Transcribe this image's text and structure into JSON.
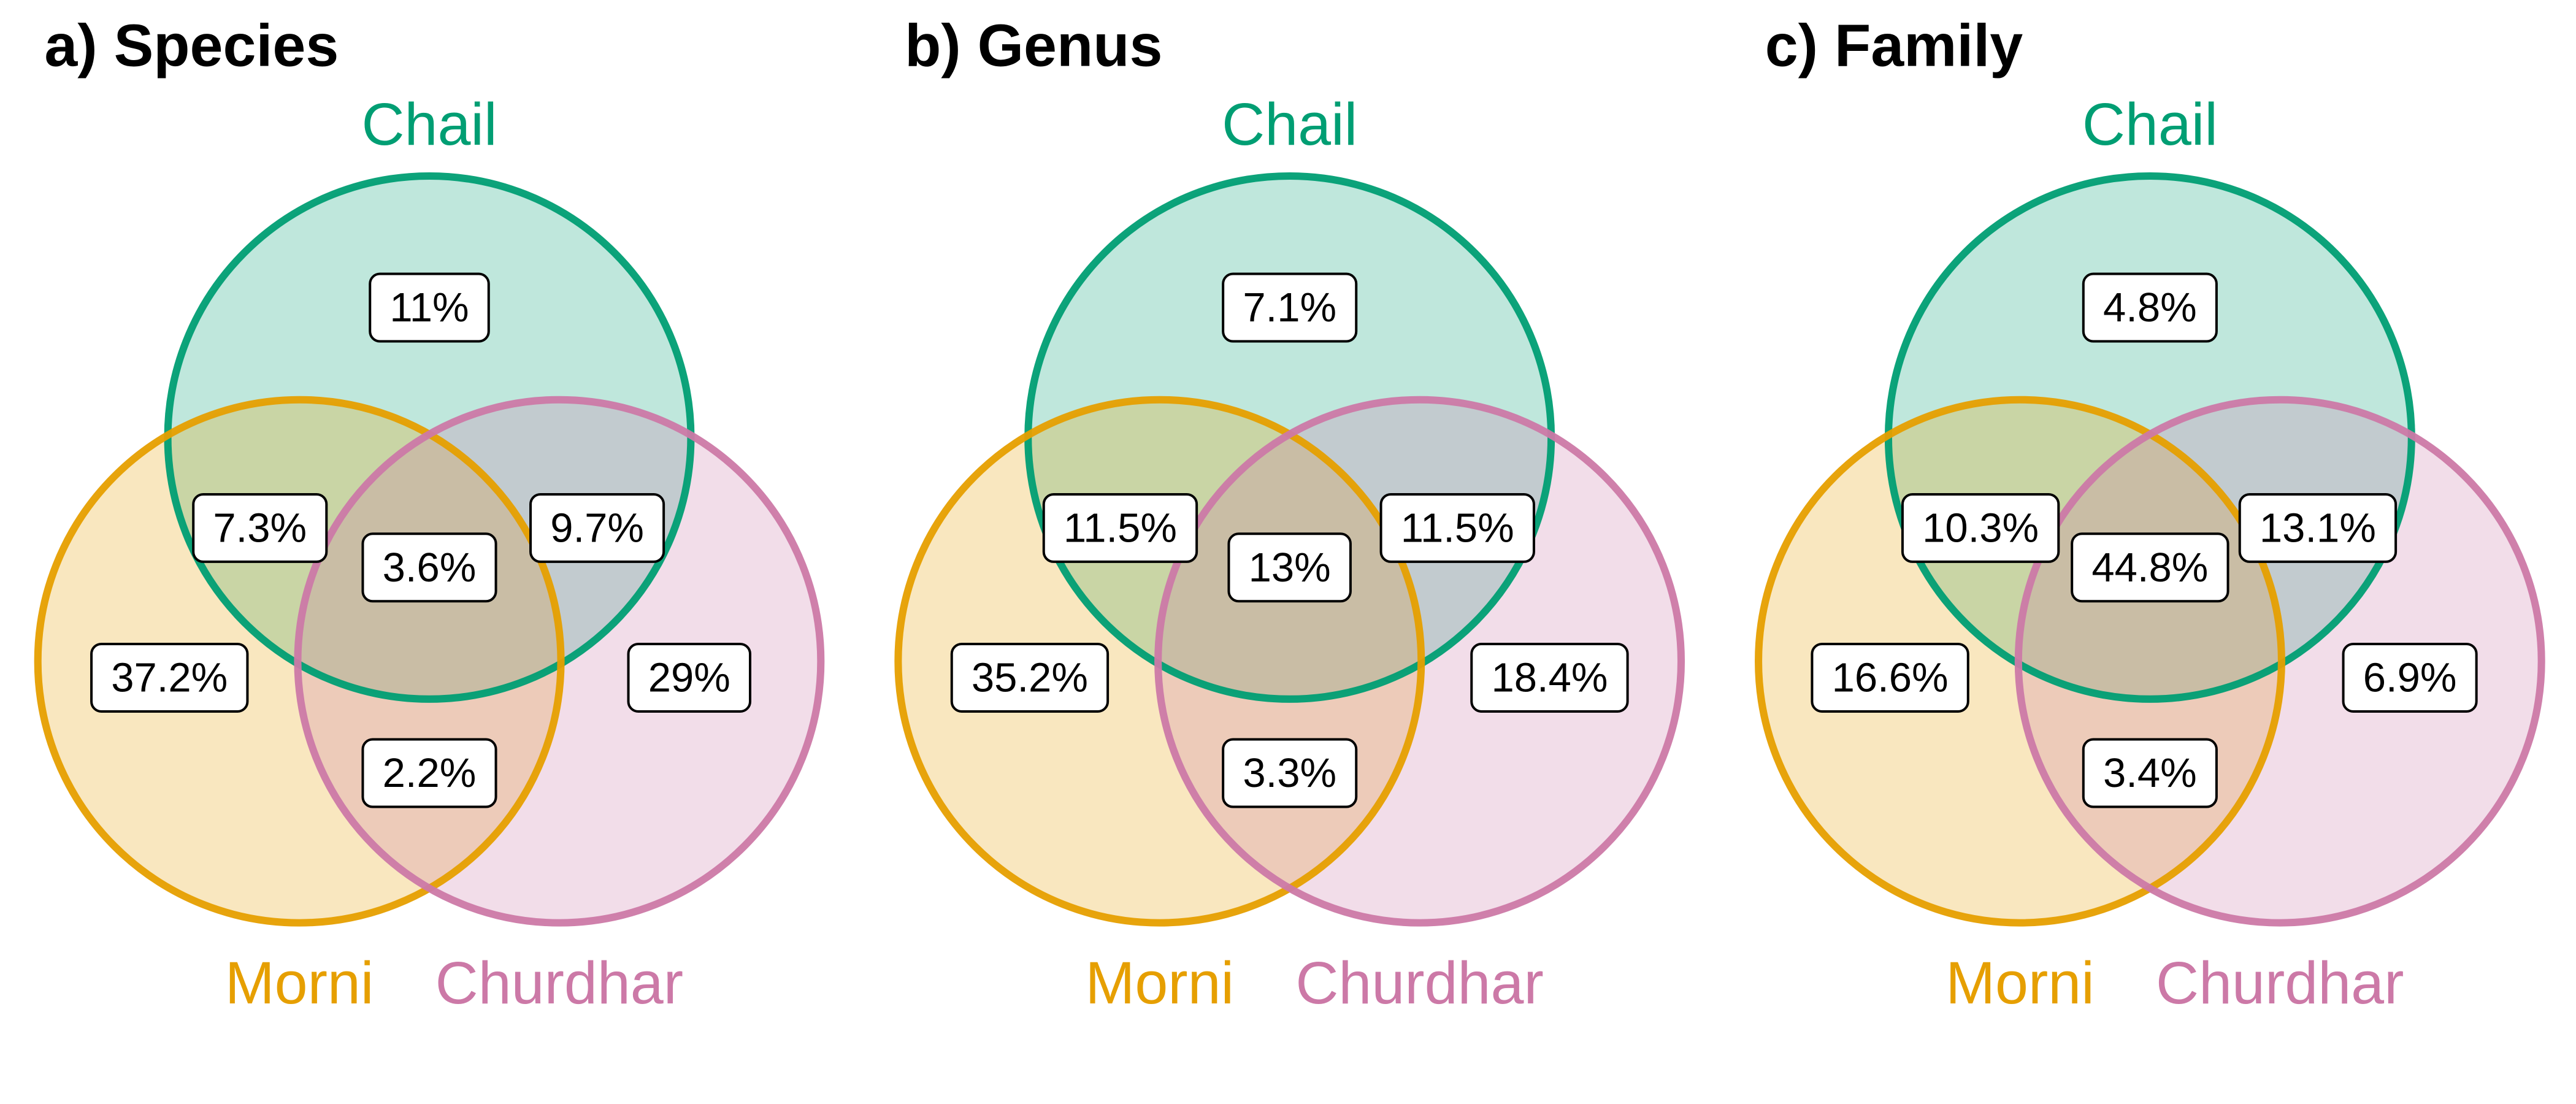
{
  "sets": [
    {
      "key": "chail",
      "label": "Chail",
      "color": "#009E73",
      "fill": "#BEE7DB"
    },
    {
      "key": "morni",
      "label": "Morni",
      "color": "#E69F00",
      "fill": "#F8E6BE"
    },
    {
      "key": "churdhar",
      "label": "Churdhar",
      "color": "#CC79A7",
      "fill": "#F2DCE8"
    }
  ],
  "panels": [
    {
      "title": "a) Species",
      "regions": {
        "chail_only": "11%",
        "chail_morni": "7.3%",
        "chail_churdhar": "9.7%",
        "all_three": "3.6%",
        "morni_only": "37.2%",
        "churdhar_only": "29%",
        "morni_churdhar": "2.2%"
      }
    },
    {
      "title": "b) Genus",
      "regions": {
        "chail_only": "7.1%",
        "chail_morni": "11.5%",
        "chail_churdhar": "11.5%",
        "all_three": "13%",
        "morni_only": "35.2%",
        "churdhar_only": "18.4%",
        "morni_churdhar": "3.3%"
      }
    },
    {
      "title": "c) Family",
      "regions": {
        "chail_only": "4.8%",
        "chail_morni": "10.3%",
        "chail_churdhar": "13.1%",
        "all_three": "44.8%",
        "morni_only": "16.6%",
        "churdhar_only": "6.9%",
        "morni_churdhar": "3.4%"
      }
    }
  ]
}
